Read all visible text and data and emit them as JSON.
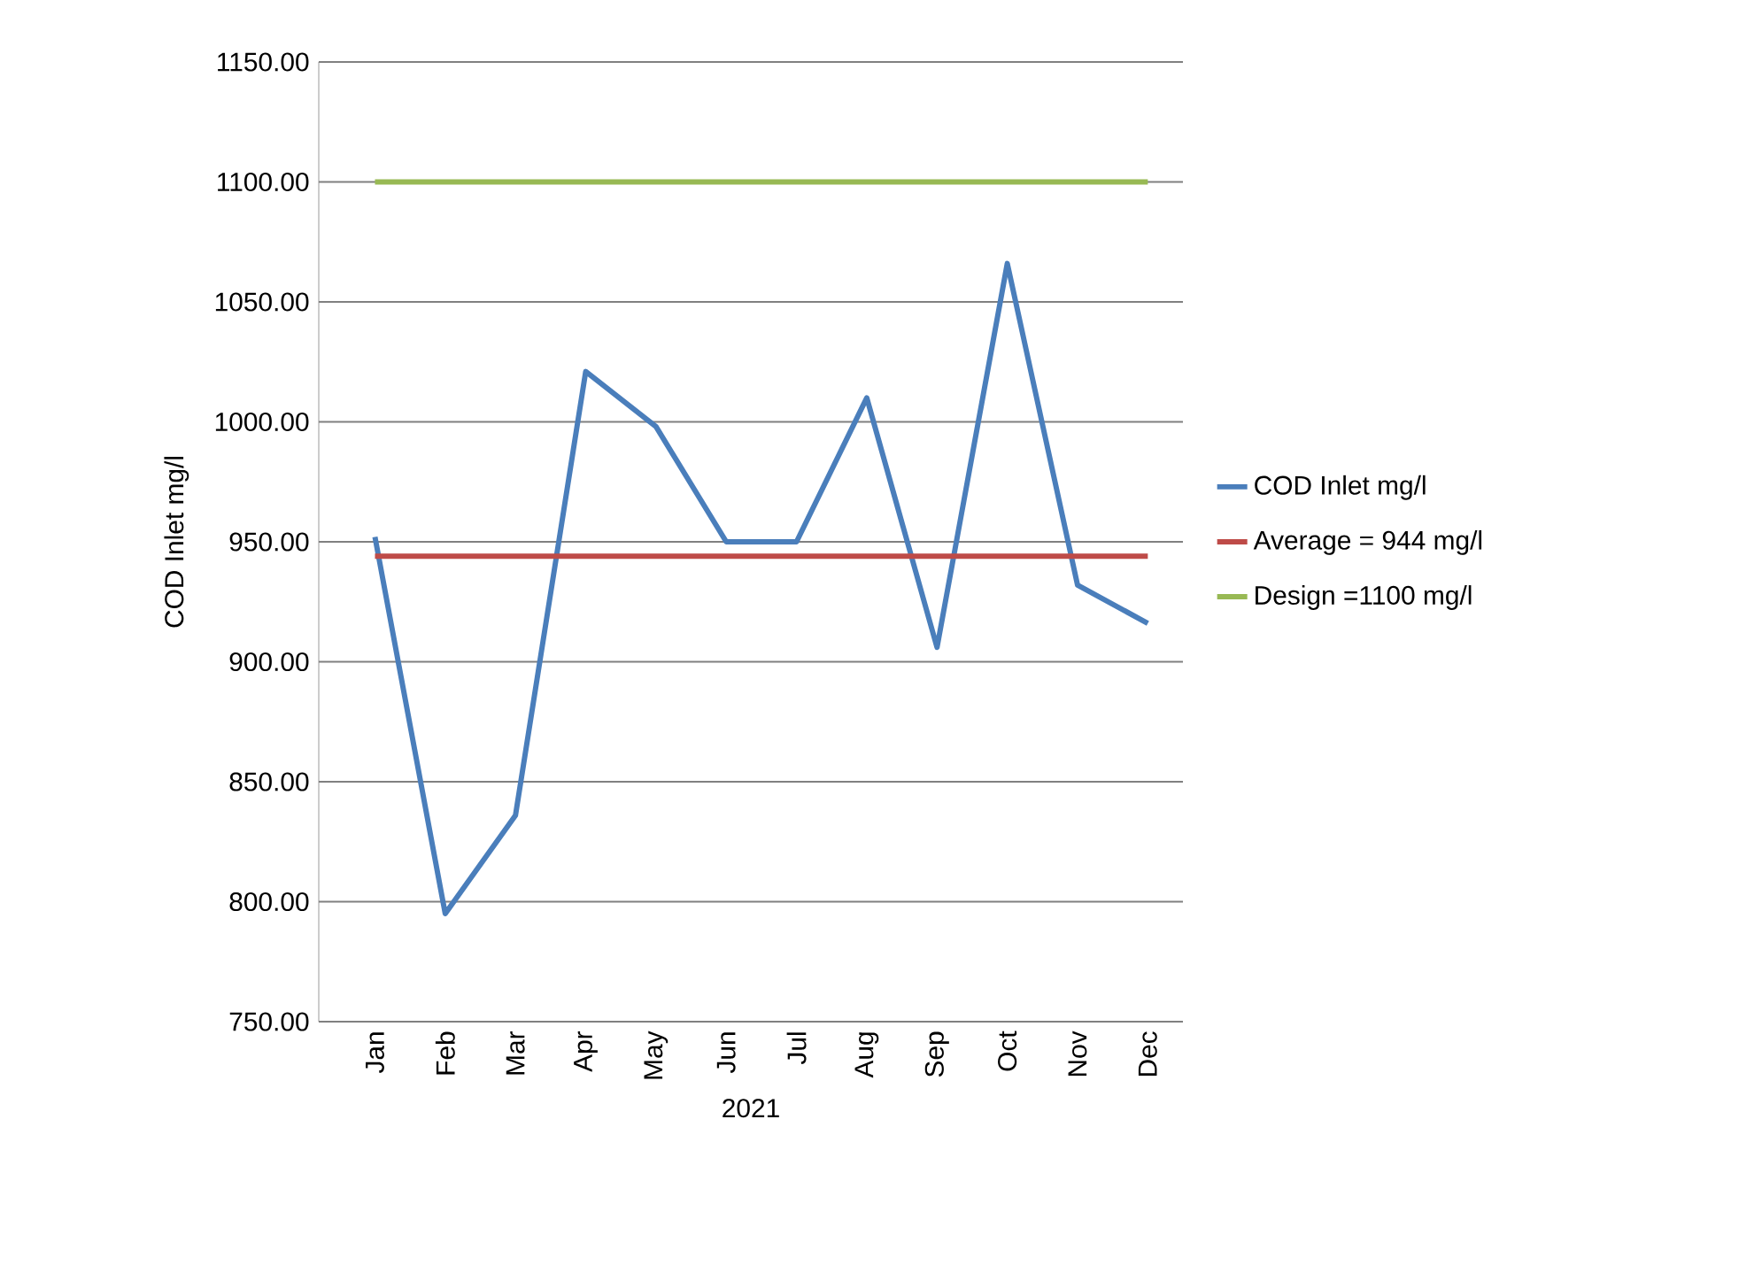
{
  "chart_data": {
    "type": "line",
    "xlabel": "2021",
    "ylabel": "COD Inlet mg/l",
    "categories": [
      "Jan",
      "Feb",
      "Mar",
      "Apr",
      "May",
      "Jun",
      "Jul",
      "Aug",
      "Sep",
      "Oct",
      "Nov",
      "Dec"
    ],
    "series": [
      {
        "name": "COD Inlet mg/l",
        "color": "#4a7ebb",
        "values": [
          952,
          795,
          836,
          1021,
          998,
          950,
          950,
          1010,
          906,
          1066,
          932,
          916
        ]
      },
      {
        "name": "Average = 944 mg/l",
        "color": "#be4b48",
        "values": [
          944,
          944,
          944,
          944,
          944,
          944,
          944,
          944,
          944,
          944,
          944,
          944
        ]
      },
      {
        "name": "Design =1100 mg/l",
        "color": "#98b954",
        "values": [
          1100,
          1100,
          1100,
          1100,
          1100,
          1100,
          1100,
          1100,
          1100,
          1100,
          1100,
          1100
        ]
      }
    ],
    "ylim": [
      750,
      1150
    ],
    "yticks": [
      {
        "value": 750,
        "label": "750.00"
      },
      {
        "value": 800,
        "label": "800.00"
      },
      {
        "value": 850,
        "label": "850.00"
      },
      {
        "value": 900,
        "label": "900.00"
      },
      {
        "value": 950,
        "label": "950.00"
      },
      {
        "value": 1000,
        "label": "1000.00"
      },
      {
        "value": 1050,
        "label": "1050.00"
      },
      {
        "value": 1100,
        "label": "1100.00"
      },
      {
        "value": 1150,
        "label": "1150.00"
      }
    ],
    "grid": "y",
    "legend": "right",
    "marker": "none",
    "line_style": "solid"
  }
}
